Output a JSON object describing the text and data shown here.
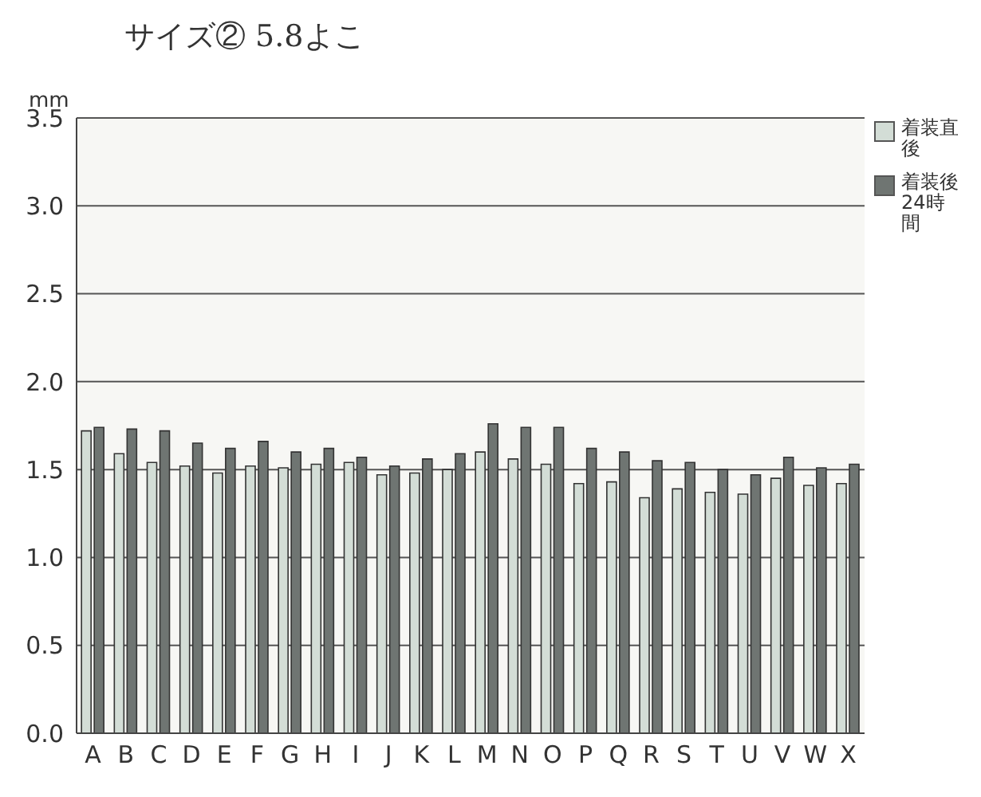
{
  "chart_data": {
    "type": "bar",
    "title": "サイズ② 5.8よこ",
    "ylabel": "mm",
    "categories": [
      "A",
      "B",
      "C",
      "D",
      "E",
      "F",
      "G",
      "H",
      "I",
      "J",
      "K",
      "L",
      "M",
      "N",
      "O",
      "P",
      "Q",
      "R",
      "S",
      "T",
      "U",
      "V",
      "W",
      "X"
    ],
    "series": [
      {
        "name": "着装直後",
        "color": "#d3ddd6",
        "values": [
          1.72,
          1.59,
          1.54,
          1.52,
          1.48,
          1.52,
          1.51,
          1.53,
          1.54,
          1.47,
          1.48,
          1.5,
          1.6,
          1.56,
          1.53,
          1.42,
          1.43,
          1.34,
          1.39,
          1.37,
          1.36,
          1.45,
          1.41,
          1.42
        ]
      },
      {
        "name": "着装後24時間",
        "color": "#6f7572",
        "values": [
          1.74,
          1.73,
          1.72,
          1.65,
          1.62,
          1.66,
          1.6,
          1.62,
          1.57,
          1.52,
          1.56,
          1.59,
          1.76,
          1.74,
          1.74,
          1.62,
          1.6,
          1.55,
          1.54,
          1.5,
          1.47,
          1.57,
          1.51,
          1.53
        ]
      }
    ],
    "ylim": [
      0,
      3.5
    ],
    "yticks": [
      {
        "value": 0,
        "label": "0.0"
      },
      0.5,
      {
        "value": 1,
        "label": "1.0"
      },
      1.5,
      {
        "value": 2,
        "label": "2.0"
      },
      2.5,
      {
        "value": 3,
        "label": "3.0"
      },
      3.5
    ],
    "grid": "y",
    "legend": "top right"
  }
}
